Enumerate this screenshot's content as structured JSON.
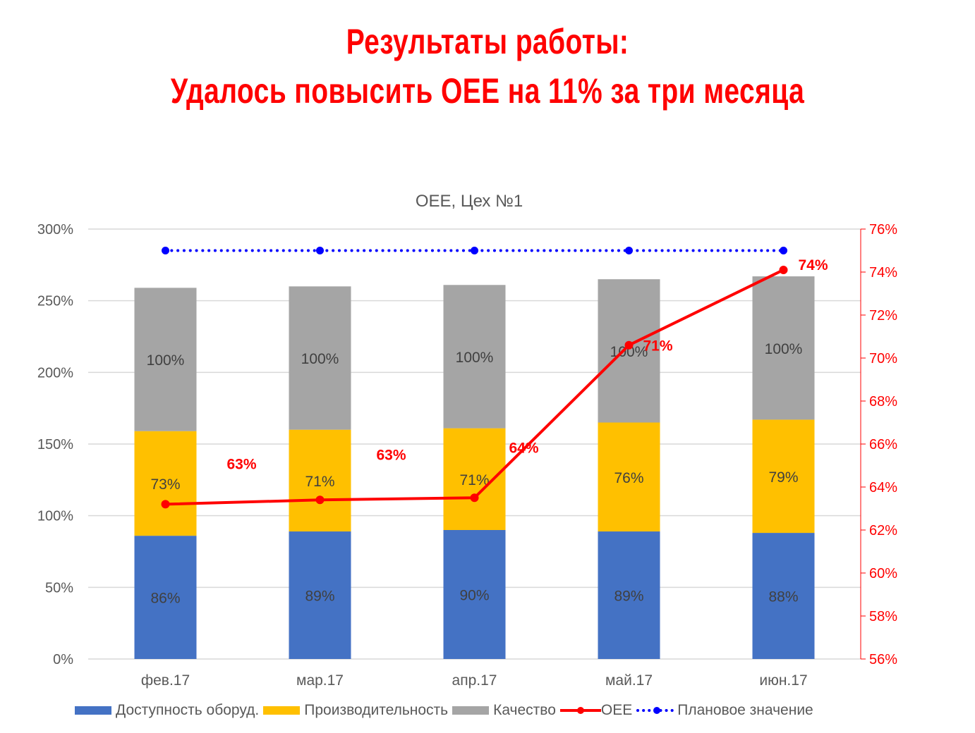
{
  "header": {
    "title_line1": "Результаты работы:",
    "title_line2": "Удалось повысить OEE на 11% за три месяца"
  },
  "chart_data": {
    "type": "bar",
    "stacked": true,
    "title": "OEE, Цех №1",
    "categories": [
      "фев.17",
      "мар.17",
      "апр.17",
      "май.17",
      "июн.17"
    ],
    "left_axis": {
      "ylim": [
        0,
        300
      ],
      "ticks": [
        "0%",
        "50%",
        "100%",
        "150%",
        "200%",
        "250%",
        "300%"
      ]
    },
    "right_axis": {
      "ylim": [
        56,
        76
      ],
      "ticks": [
        "56%",
        "58%",
        "60%",
        "62%",
        "64%",
        "66%",
        "68%",
        "70%",
        "72%",
        "74%",
        "76%"
      ],
      "color": "#ff0000"
    },
    "grid": true,
    "legend_position": "bottom",
    "series": [
      {
        "name": "Доступность оборуд.",
        "type": "bar",
        "axis": "left",
        "color": "#4472c4",
        "values": [
          86,
          89,
          90,
          89,
          88
        ],
        "labels": [
          "86%",
          "89%",
          "90%",
          "89%",
          "88%"
        ]
      },
      {
        "name": "Производительность",
        "type": "bar",
        "axis": "left",
        "color": "#ffc000",
        "values": [
          73,
          71,
          71,
          76,
          79
        ],
        "labels": [
          "73%",
          "71%",
          "71%",
          "76%",
          "79%"
        ]
      },
      {
        "name": "Качество",
        "type": "bar",
        "axis": "left",
        "color": "#a5a5a5",
        "values": [
          100,
          100,
          100,
          100,
          100
        ],
        "labels": [
          "100%",
          "100%",
          "100%",
          "100%",
          "100%"
        ]
      },
      {
        "name": "OEE",
        "type": "line",
        "axis": "right",
        "color": "#ff0000",
        "values": [
          63.2,
          63.4,
          63.5,
          70.6,
          74.1
        ],
        "labels": [
          "63%",
          "63%",
          "64%",
          "71%",
          "74%"
        ]
      },
      {
        "name": "Плановое значение",
        "type": "line",
        "style": "dotted",
        "axis": "right",
        "color": "#0000ff",
        "values": [
          75,
          75,
          75,
          75,
          75
        ]
      }
    ]
  }
}
